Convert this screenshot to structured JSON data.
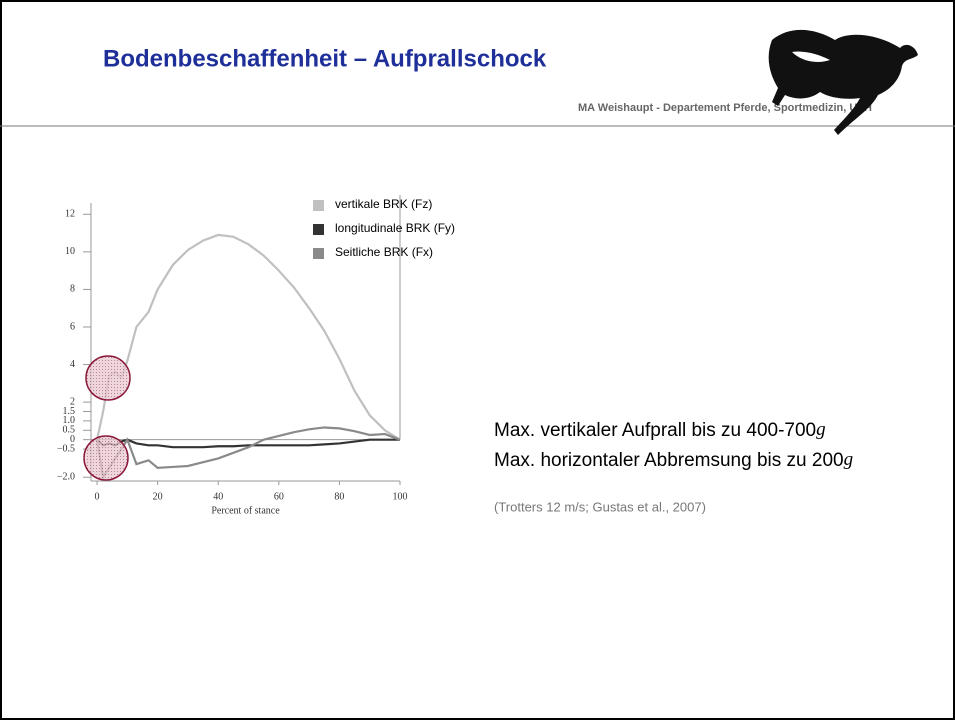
{
  "header": {
    "title": "Bodenbeschaffenheit – Aufprallschock",
    "subtitle": "MA Weishaupt - Departement Pferde, Sportmedizin, UZH"
  },
  "text": {
    "lines": [
      {
        "main": "Max. vertikaler Aufprall bis zu 400-700",
        "unit": "g"
      },
      {
        "main": "Max. horizontaler Abbremsung bis zu 200",
        "unit": "g"
      }
    ],
    "citation": "(Trotters 12 m/s; Gustas et al., 2007)"
  },
  "chart_data": {
    "type": "line",
    "xlabel": "Percent of stance",
    "x": [
      0,
      2,
      4,
      6,
      8,
      10,
      13,
      17,
      20,
      25,
      30,
      35,
      40,
      45,
      50,
      55,
      60,
      65,
      70,
      75,
      80,
      85,
      90,
      95,
      100
    ],
    "series": [
      {
        "name": "vertikale BRK (Fz)",
        "color": "#c0c0c0",
        "values": [
          0,
          1.5,
          3.4,
          3.6,
          3.3,
          4.2,
          6,
          6.8,
          8,
          9.3,
          10.1,
          10.6,
          10.9,
          10.8,
          10.4,
          9.8,
          9,
          8.1,
          7,
          5.8,
          4.3,
          2.6,
          1.3,
          0.5,
          0
        ]
      },
      {
        "name": "longitudinale BRK (Fy)",
        "color": "#333333",
        "values": [
          0,
          -0.3,
          -0.2,
          -0.3,
          -0.1,
          0,
          -0.2,
          -0.3,
          -0.3,
          -0.4,
          -0.4,
          -0.4,
          -0.35,
          -0.35,
          -0.3,
          -0.3,
          -0.3,
          -0.3,
          -0.3,
          -0.25,
          -0.2,
          -0.1,
          0,
          0,
          0
        ]
      },
      {
        "name": "Seitliche BRK (Fx)",
        "color": "#8a8a8a",
        "values": [
          0,
          -2,
          -1.5,
          -1,
          -0.5,
          0,
          -1.3,
          -1.1,
          -1.5,
          -1.45,
          -1.4,
          -1.2,
          -1,
          -0.7,
          -0.4,
          0,
          0.2,
          0.4,
          0.55,
          0.65,
          0.6,
          0.45,
          0.25,
          0.3,
          0
        ]
      }
    ],
    "xlim": [
      -2,
      100
    ],
    "xticks": [
      0,
      20,
      40,
      60,
      80,
      100
    ],
    "ylim": [
      -2.2,
      12.6
    ],
    "yticks": [
      12,
      10,
      8,
      6,
      4,
      2,
      1.5,
      {
        "value": 1,
        "label": "1.0"
      },
      0.5,
      0,
      {
        "value": -0.5,
        "label": "−0.5"
      },
      {
        "value": -2,
        "label": "−2.0"
      }
    ]
  }
}
